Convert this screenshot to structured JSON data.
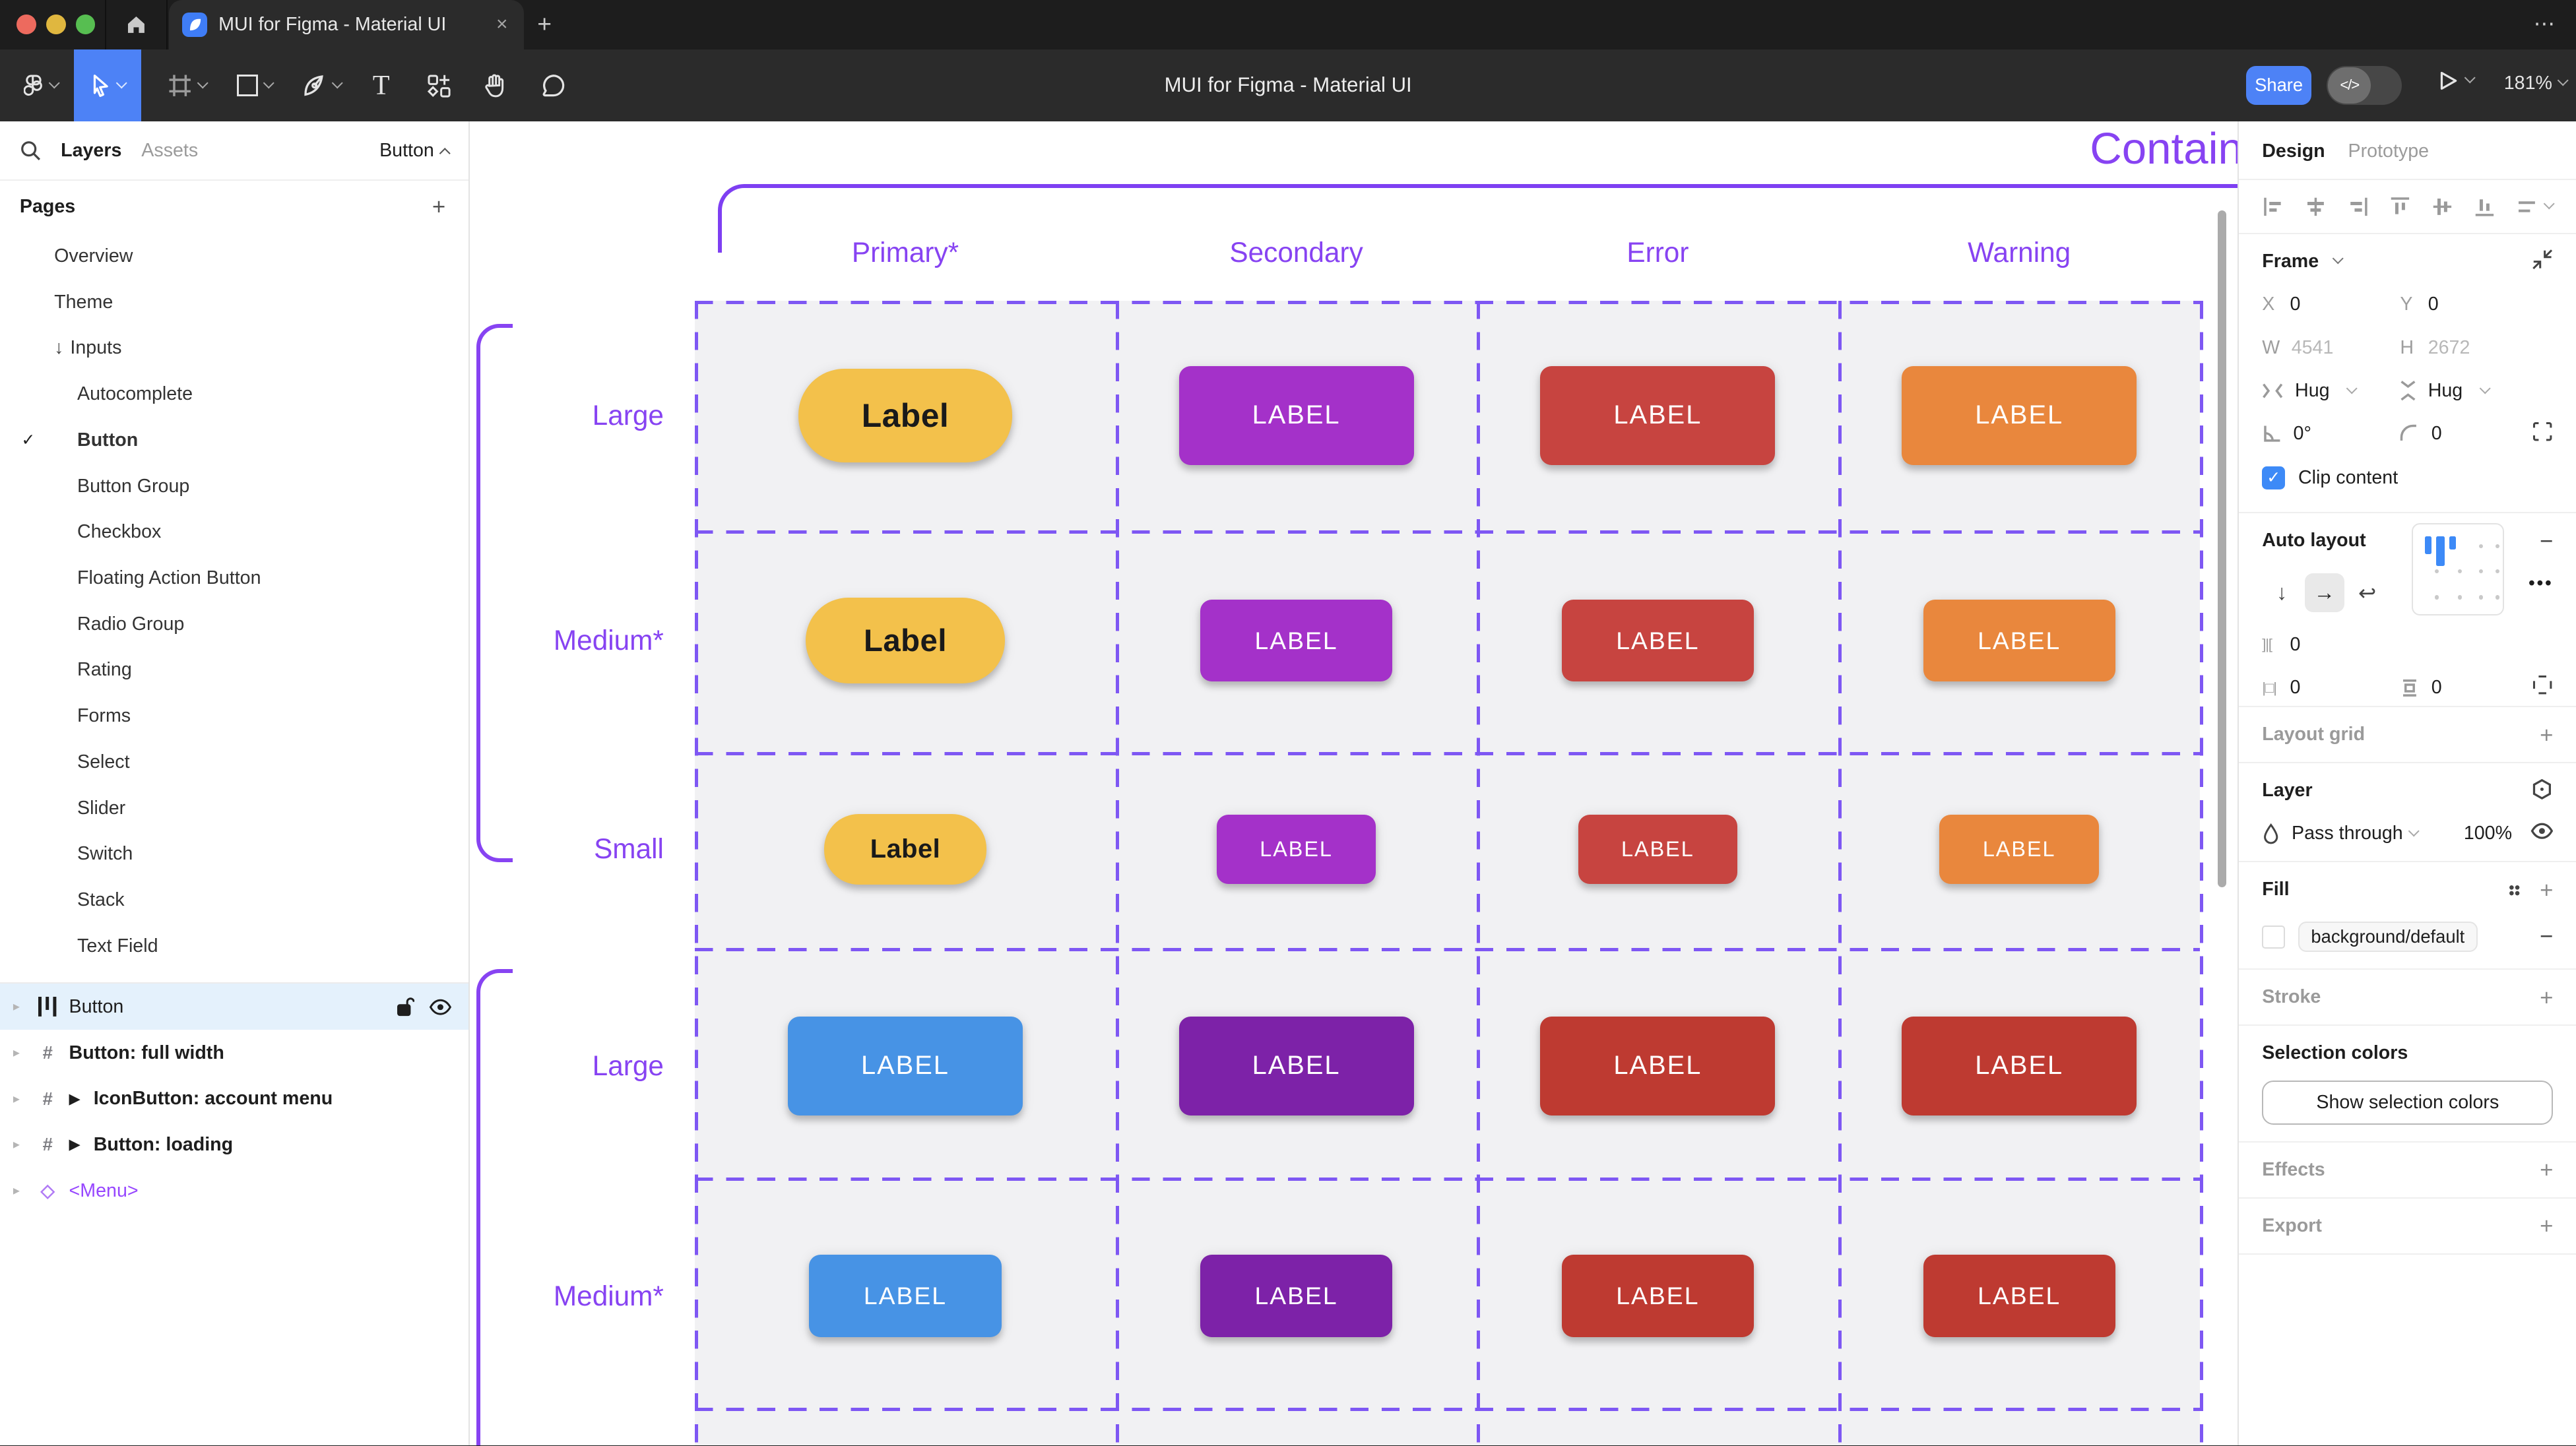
{
  "window": {
    "tab_title": "MUI for Figma - Material UI",
    "close_label": "×",
    "new_tab_label": "+",
    "more_label": "⋯"
  },
  "toolbar": {
    "title": "MUI for Figma - Material UI",
    "share_label": "Share",
    "dev_toggle_label": "</>",
    "zoom_level": "181%"
  },
  "left_panel": {
    "tabs": {
      "layers": "Layers",
      "assets": "Assets"
    },
    "page_selector": "Button",
    "pages_title": "Pages",
    "add_label": "+",
    "pages": [
      {
        "label": "Overview",
        "level": 1
      },
      {
        "label": "Theme",
        "level": 1
      },
      {
        "label": "Inputs",
        "level": 1,
        "arrow": "↓"
      },
      {
        "label": "Autocomplete",
        "level": 2
      },
      {
        "label": "Button",
        "level": 2,
        "checked": "✓",
        "bold": true
      },
      {
        "label": "Button Group",
        "level": 2
      },
      {
        "label": "Checkbox",
        "level": 2
      },
      {
        "label": "Floating Action Button",
        "level": 2
      },
      {
        "label": "Radio Group",
        "level": 2
      },
      {
        "label": "Rating",
        "level": 2
      },
      {
        "label": "Forms",
        "level": 2
      },
      {
        "label": "Select",
        "level": 2
      },
      {
        "label": "Slider",
        "level": 2
      },
      {
        "label": "Switch",
        "level": 2
      },
      {
        "label": "Stack",
        "level": 2
      },
      {
        "label": "Text Field",
        "level": 2
      }
    ],
    "layers": [
      {
        "name": "Button",
        "icon": "autolayout",
        "selected": true,
        "bold": false
      },
      {
        "name": "Button: full width",
        "icon": "frame",
        "bold": true
      },
      {
        "name": "IconButton: account menu",
        "icon": "frame",
        "play": "▶",
        "bold": true
      },
      {
        "name": "Button: loading",
        "icon": "frame",
        "play": "▶",
        "bold": true
      },
      {
        "name": "<Menu>",
        "icon": "instance",
        "component": true,
        "bold": false
      }
    ]
  },
  "canvas": {
    "frame_title": "Contained",
    "columns": [
      "Primary*",
      "Secondary",
      "Error",
      "Warning"
    ],
    "palette": {
      "annotation": "#8743F2",
      "primary_pill_bg": "#F3C14B",
      "primary_pill_text": "#1A1A1A",
      "secondary": "#A431C9",
      "error": "#C74440",
      "warning": "#E9873D",
      "primary2": "#4793E5",
      "secondary2": "#7D22A8",
      "error2": "#BE3A31",
      "warning2": "#BE3A31"
    },
    "rows": [
      {
        "label": "Large",
        "size": "lg",
        "cells": [
          {
            "color": "primary_pill_bg",
            "text_color": "primary_pill_text",
            "shape": "pill",
            "text": "Label"
          },
          {
            "color": "secondary",
            "shape": "rect",
            "text": "LABEL"
          },
          {
            "color": "error",
            "shape": "rect",
            "text": "LABEL"
          },
          {
            "color": "warning",
            "shape": "rect",
            "text": "LABEL"
          }
        ]
      },
      {
        "label": "Medium*",
        "size": "md",
        "cells": [
          {
            "color": "primary_pill_bg",
            "text_color": "primary_pill_text",
            "shape": "pill",
            "text": "Label"
          },
          {
            "color": "secondary",
            "shape": "rect",
            "text": "LABEL"
          },
          {
            "color": "error",
            "shape": "rect",
            "text": "LABEL"
          },
          {
            "color": "warning",
            "shape": "rect",
            "text": "LABEL"
          }
        ]
      },
      {
        "label": "Small",
        "size": "sm",
        "cells": [
          {
            "color": "primary_pill_bg",
            "text_color": "primary_pill_text",
            "shape": "pill",
            "text": "Label"
          },
          {
            "color": "secondary",
            "shape": "rect",
            "text": "LABEL"
          },
          {
            "color": "error",
            "shape": "rect",
            "text": "LABEL"
          },
          {
            "color": "warning",
            "shape": "rect",
            "text": "LABEL"
          }
        ]
      },
      {
        "label": "Large",
        "size": "lg",
        "cells": [
          {
            "color": "primary2",
            "shape": "rect",
            "text": "LABEL"
          },
          {
            "color": "secondary2",
            "shape": "rect",
            "text": "LABEL"
          },
          {
            "color": "error2",
            "shape": "rect",
            "text": "LABEL"
          },
          {
            "color": "warning2",
            "shape": "rect",
            "text": "LABEL"
          }
        ]
      },
      {
        "label": "Medium*",
        "size": "md",
        "cells": [
          {
            "color": "primary2",
            "shape": "rect",
            "text": "LABEL"
          },
          {
            "color": "secondary2",
            "shape": "rect",
            "text": "LABEL"
          },
          {
            "color": "error2",
            "shape": "rect",
            "text": "LABEL"
          },
          {
            "color": "warning2",
            "shape": "rect",
            "text": "LABEL"
          }
        ]
      }
    ]
  },
  "right_panel": {
    "tabs": {
      "design": "Design",
      "prototype": "Prototype"
    },
    "frame": {
      "title": "Frame",
      "x_label": "X",
      "x": "0",
      "y_label": "Y",
      "y": "0",
      "w_label": "W",
      "w": "4541",
      "h_label": "H",
      "h": "2672",
      "h_resize": "Hug",
      "v_resize": "Hug",
      "rotation": "0°",
      "radius": "0",
      "clip_label": "Clip content"
    },
    "auto_layout": {
      "title": "Auto layout",
      "gap": "0",
      "padding_h": "0",
      "padding_v": "0",
      "gap_icon": "]|[",
      "padding_h_icon": "|□|"
    },
    "layout_grid": {
      "title": "Layout grid"
    },
    "layer": {
      "title": "Layer",
      "blend_mode": "Pass through",
      "opacity": "100%"
    },
    "fill": {
      "title": "Fill",
      "value": "background/default"
    },
    "stroke": {
      "title": "Stroke"
    },
    "selection_colors": {
      "title": "Selection colors",
      "button_label": "Show selection colors"
    },
    "effects": {
      "title": "Effects"
    },
    "export": {
      "title": "Export"
    }
  }
}
